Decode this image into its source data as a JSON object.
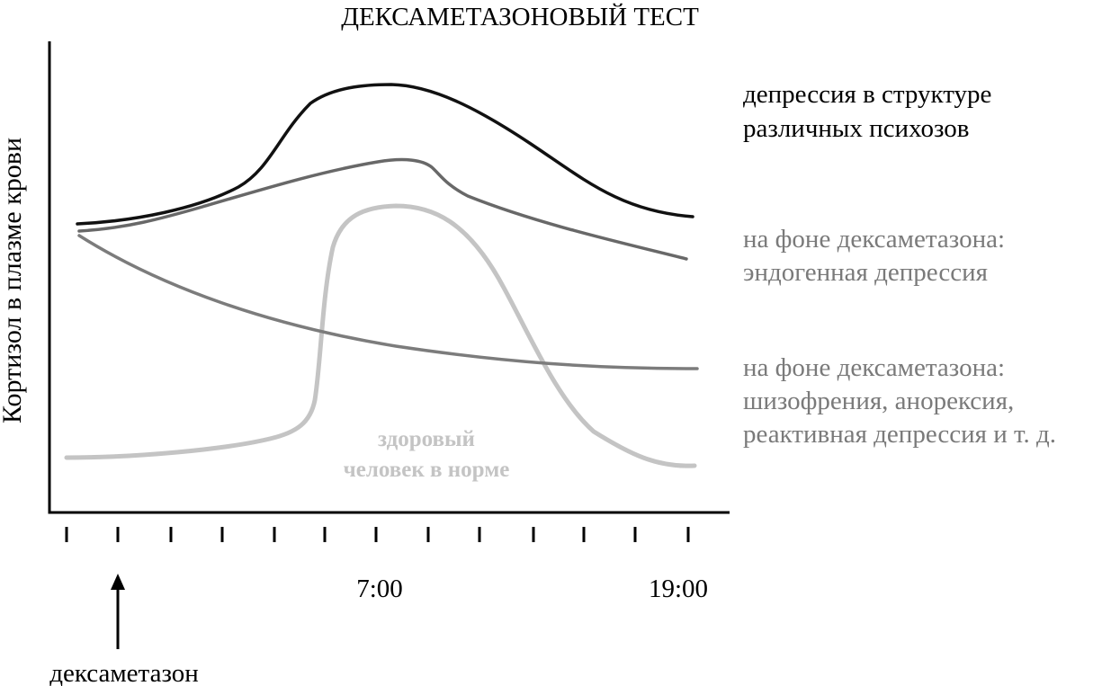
{
  "chart_data": {
    "type": "line",
    "title": "ДЕКСАМЕТАЗОНОВЫЙ ТЕСТ",
    "ylabel": "Кортизол в плазме крови",
    "xlabel": "",
    "x_tick_labels": [
      "7:00",
      "19:00"
    ],
    "x_tick_count": 13,
    "axis_values_shown": false,
    "annotation": {
      "label": "дексаметазон",
      "arrow_at_tick": 1
    },
    "series_descriptions": {
      "depression_psychoses": [
        "депрессия в структуре",
        "различных психозов"
      ],
      "endogenous_depression": [
        "на фоне дексаметазона:",
        "эндогенная депрессия"
      ],
      "schizophrenia_etc": [
        "на фоне дексаметазона:",
        "шизофрения, анорексия,",
        "реактивная депрессия и т. д."
      ],
      "healthy": [
        "здоровый",
        "человек в норме"
      ]
    },
    "colors": {
      "depression_psychoses": "#111111",
      "endogenous_depression": "#686868",
      "schizophrenia_etc": "#7c7c7c",
      "healthy": "#c4c4c4",
      "axis": "#000000",
      "label_gray": "#7a7a7a",
      "healthy_label": "#c4c4c4"
    }
  }
}
